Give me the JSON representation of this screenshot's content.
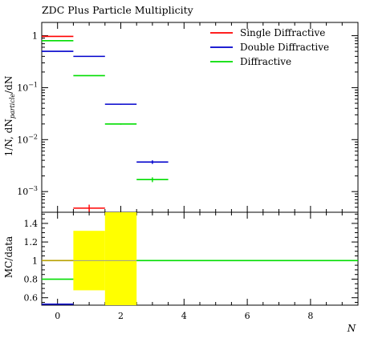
{
  "chart_data": [
    {
      "type": "line",
      "title": "ZDC Plus Particle Multiplicity",
      "xlabel": "",
      "ylabel": "1/N, dN_particle/dN",
      "ylabel_main": "1/N, dN",
      "ylabel_sub": "particle",
      "ylabel_tail": "/dN",
      "yscale": "log",
      "xlim": [
        -0.5,
        9.5
      ],
      "ylim": [
        0.0004,
        1.8
      ],
      "legend_position": "top-right",
      "y_ticks": [
        {
          "value": 1,
          "label": "1"
        },
        {
          "value": 0.1,
          "label": "10",
          "exp": "−1"
        },
        {
          "value": 0.01,
          "label": "10",
          "exp": "−2"
        },
        {
          "value": 0.001,
          "label": "10",
          "exp": "−3"
        }
      ],
      "series": [
        {
          "name": "Single Diffractive",
          "color": "#ff0000",
          "points": [
            {
              "x": 0,
              "xlo": -0.5,
              "xhi": 0.5,
              "y": 0.97,
              "yerr": 0
            },
            {
              "x": 1,
              "xlo": 0.5,
              "xhi": 1.5,
              "y": 0.00048,
              "yerr": 8e-05
            }
          ]
        },
        {
          "name": "Double Diffractive",
          "color": "#0000cc",
          "points": [
            {
              "x": 0,
              "xlo": -0.5,
              "xhi": 0.5,
              "y": 0.5,
              "yerr": 0
            },
            {
              "x": 1,
              "xlo": 0.5,
              "xhi": 1.5,
              "y": 0.4,
              "yerr": 0
            },
            {
              "x": 2,
              "xlo": 1.5,
              "xhi": 2.5,
              "y": 0.048,
              "yerr": 0.001
            },
            {
              "x": 3,
              "xlo": 2.5,
              "xhi": 3.5,
              "y": 0.0037,
              "yerr": 0.0003
            }
          ]
        },
        {
          "name": "Diffractive",
          "color": "#00dd00",
          "points": [
            {
              "x": 0,
              "xlo": -0.5,
              "xhi": 0.5,
              "y": 0.8,
              "yerr": 0
            },
            {
              "x": 1,
              "xlo": 0.5,
              "xhi": 1.5,
              "y": 0.17,
              "yerr": 0
            },
            {
              "x": 2,
              "xlo": 1.5,
              "xhi": 2.5,
              "y": 0.02,
              "yerr": 0.0006
            },
            {
              "x": 3,
              "xlo": 2.5,
              "xhi": 3.5,
              "y": 0.0017,
              "yerr": 0.00018
            }
          ]
        }
      ]
    },
    {
      "type": "line",
      "title": "",
      "xlabel": "N",
      "ylabel": "MC/data",
      "xlim": [
        -0.5,
        9.5
      ],
      "ylim": [
        0.52,
        1.52
      ],
      "x_ticks": [
        0,
        2,
        4,
        6,
        8
      ],
      "y_ticks": [
        0.6,
        0.8,
        1,
        1.2,
        1.4
      ],
      "y_tick_labels": [
        "0.6",
        "0.8",
        "1",
        "1.2",
        "1.4"
      ],
      "reference_line": 1,
      "uncertainty_band": {
        "color": "#ffff00",
        "bins": [
          {
            "xlo": 0.5,
            "xhi": 1.5,
            "ylo": 0.68,
            "yhi": 1.32
          },
          {
            "xlo": 1.5,
            "xhi": 2.5,
            "ylo": 0.52,
            "yhi": 1.52
          }
        ]
      },
      "series": [
        {
          "name": "Double Diffractive",
          "color": "#0000cc",
          "points": [
            {
              "xlo": -0.5,
              "xhi": 0.5,
              "y": 0.53
            }
          ]
        },
        {
          "name": "Diffractive",
          "color": "#00dd00",
          "points": [
            {
              "xlo": -0.5,
              "xhi": 0.5,
              "y": 0.8
            },
            {
              "xlo": 2.5,
              "xhi": 9.5,
              "y": 1.0
            }
          ]
        },
        {
          "name": "Single Diffractive",
          "color": "#ff0000",
          "points": []
        }
      ]
    }
  ]
}
